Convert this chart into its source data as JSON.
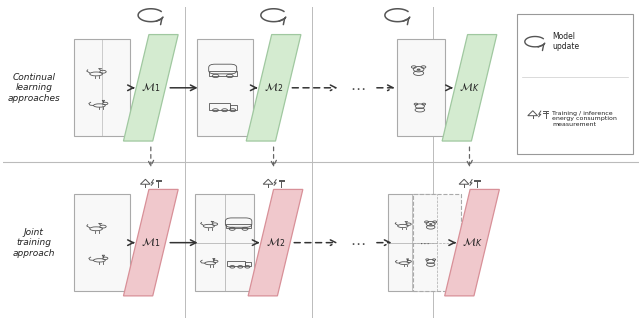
{
  "fig_width": 6.4,
  "fig_height": 3.24,
  "dpi": 100,
  "bg_color": "#ffffff",
  "green_fill": "#d4ebd0",
  "green_edge": "#a0c8a0",
  "pink_fill": "#f0c8cc",
  "pink_edge": "#d89098",
  "box_fill": "#f8f8f8",
  "box_edge": "#aaaaaa",
  "text_color": "#222222",
  "arrow_color": "#333333",
  "row_label_top": "Continual\nlearning\napproaches",
  "row_label_bottom": "Joint\ntraining\napproach",
  "legend_title_1": "Model\nupdate",
  "legend_title_2": "Training / inference\nenergy consumption\nmeasurement",
  "model_labels_top": [
    "$\\mathcal{M}_1$",
    "$\\mathcal{M}_2$",
    "$\\mathcal{M}_K$"
  ],
  "model_labels_bottom": [
    "$\\mathcal{M}_1$",
    "$\\mathcal{M}_2$",
    "$\\mathcal{M}_K$"
  ]
}
